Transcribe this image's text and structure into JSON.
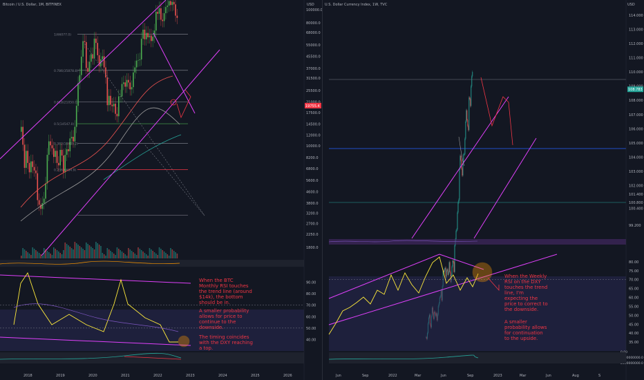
{
  "left": {
    "title": "Bitcoin / U.S. Dollar, 1M, BITFINEX",
    "unit": "USD",
    "price_badge": "19755.4",
    "notes": [
      "When the BTC Monthly RSI touches the trend line (around $14k), the bottom should be in.",
      "A smaller probability allows for price to continue to the downside.",
      "The timing coincides with the DXY reaching a top."
    ]
  },
  "right": {
    "title": "U.S. Dollar Currency Index, 1W, TVC",
    "unit": "USD",
    "price_badge": "108.783",
    "notes": [
      "When the Weekly RSI on the DXY touches the trend line, I'm expecting the price to correct to the downside.",
      "A smaller probability allows for continuation to the upside."
    ]
  },
  "colors": {
    "background": "#131722",
    "trendline": "#e040fb",
    "note_text": "#f23645",
    "rsi_line": "#ffeb3b",
    "candle_up": "#26a69a",
    "candle_down": "#ef5350"
  },
  "chart_data": [
    {
      "type": "candlestick",
      "title": "Bitcoin / U.S. Dollar, 1M, BITFINEX",
      "x_tick_labels": [
        "2018",
        "2019",
        "2020",
        "2021",
        "2022",
        "2023",
        "2024",
        "2025",
        "2026"
      ],
      "y_tick_labels": [
        "100000.0",
        "80000.0",
        "68000.0",
        "55000.0",
        "45500.0",
        "37000.0",
        "31500.0",
        "25500.0",
        "21000.0",
        "17500.0",
        "14500.0",
        "12000.0",
        "10000.0",
        "8200.0",
        "6800.0",
        "5600.0",
        "4600.0",
        "3800.0",
        "3200.0",
        "2700.0",
        "2250.0",
        "1800.0"
      ],
      "fib_levels": [
        {
          "label": "1(66077.0)",
          "value": 66077
        },
        {
          "label": "0.786(35878.8)",
          "value": 35878.8
        },
        {
          "label": "0.618(21050.0)",
          "value": 21050
        },
        {
          "label": "0.5(14547.0)",
          "value": 14547
        },
        {
          "label": "0.382(10419.2)",
          "value": 10419.2
        },
        {
          "label": "0.236(6684.9)",
          "value": 6684.9
        }
      ],
      "close": [
        13800,
        10200,
        6900,
        9200,
        7500,
        6400,
        7700,
        7000,
        6600,
        6300,
        4000,
        3700,
        3450,
        3800,
        4100,
        5300,
        8600,
        10800,
        10100,
        9600,
        8300,
        9200,
        7500,
        7200,
        9350,
        8500,
        6400,
        8600,
        9450,
        9140,
        11350,
        11650,
        10780,
        13800,
        19700,
        28900,
        33100,
        45200,
        58800,
        57800,
        37300,
        35000,
        41500,
        47100,
        43800,
        61300,
        57000,
        46300,
        38500,
        43200,
        45500,
        37700,
        31800,
        19900,
        23300,
        20050,
        19550,
        20400,
        17200,
        16500,
        23100,
        23100,
        28500,
        29250,
        27200,
        30500,
        29200,
        26000,
        27000,
        34600,
        37700,
        42300,
        42600,
        43100,
        61200,
        71300,
        60600,
        67500,
        62700,
        64600,
        58900,
        63300,
        70300,
        96400,
        93400,
        102400,
        84400,
        82500,
        94200,
        104600,
        107100,
        115700,
        108200,
        114000,
        109400,
        90400,
        87000
      ],
      "rsi": {
        "ylim": [
          30,
          100
        ],
        "y_tick_labels": [
          "90.00",
          "80.00",
          "70.00",
          "60.00",
          "50.00",
          "40.00"
        ]
      }
    },
    {
      "type": "candlestick",
      "title": "U.S. Dollar Currency Index, 1W, TVC",
      "x_tick_labels": [
        "Jun",
        "Sep",
        "2022",
        "Mar",
        "Jun",
        "Sep",
        "2023",
        "Mar",
        "Jun",
        "Aug",
        "S"
      ],
      "y_tick_labels": [
        "114.000",
        "113.000",
        "112.000",
        "111.000",
        "110.000",
        "109.000",
        "108.000",
        "107.000",
        "106.000",
        "105.000",
        "104.000",
        "103.000",
        "102.000",
        "101.400",
        "100.800",
        "100.400",
        "99.200"
      ],
      "close": [
        91.3,
        91.2,
        91.6,
        92.3,
        92.7,
        92.9,
        92.2,
        92.0,
        92.8,
        93.4,
        93.0,
        92.6,
        93.1,
        93.0,
        92.8,
        93.0,
        92.5,
        92.9,
        93.5,
        93.7,
        94.1,
        94.2,
        94.6,
        93.9,
        94.9,
        96.0,
        95.9,
        96.1,
        96.2,
        95.5,
        96.0,
        96.1,
        95.7,
        95.9,
        96.6,
        95.9,
        95.2,
        95.7,
        96.3,
        96.7,
        96.6,
        95.9,
        97.8,
        98.2,
        98.8,
        98.9,
        100.1,
        100.8,
        101.0,
        103.2,
        104.1,
        103.8,
        103.2,
        102.7,
        103.6,
        104.2,
        104.2,
        105.3,
        106.5,
        107.3,
        106.6,
        106.2,
        105.9,
        108.2,
        108.1,
        107.6,
        109.0,
        109.7,
        110.0
      ],
      "rsi": {
        "ylim": [
          30,
          85
        ],
        "y_tick_labels": [
          "80.00",
          "75.00",
          "70.00",
          "65.00",
          "60.00",
          "55.00",
          "50.00",
          "45.00",
          "40.00",
          "35.00"
        ]
      },
      "volume_axis_labels": [
        "2000000000.0",
        "1000000000.0",
        "0.00"
      ]
    }
  ]
}
